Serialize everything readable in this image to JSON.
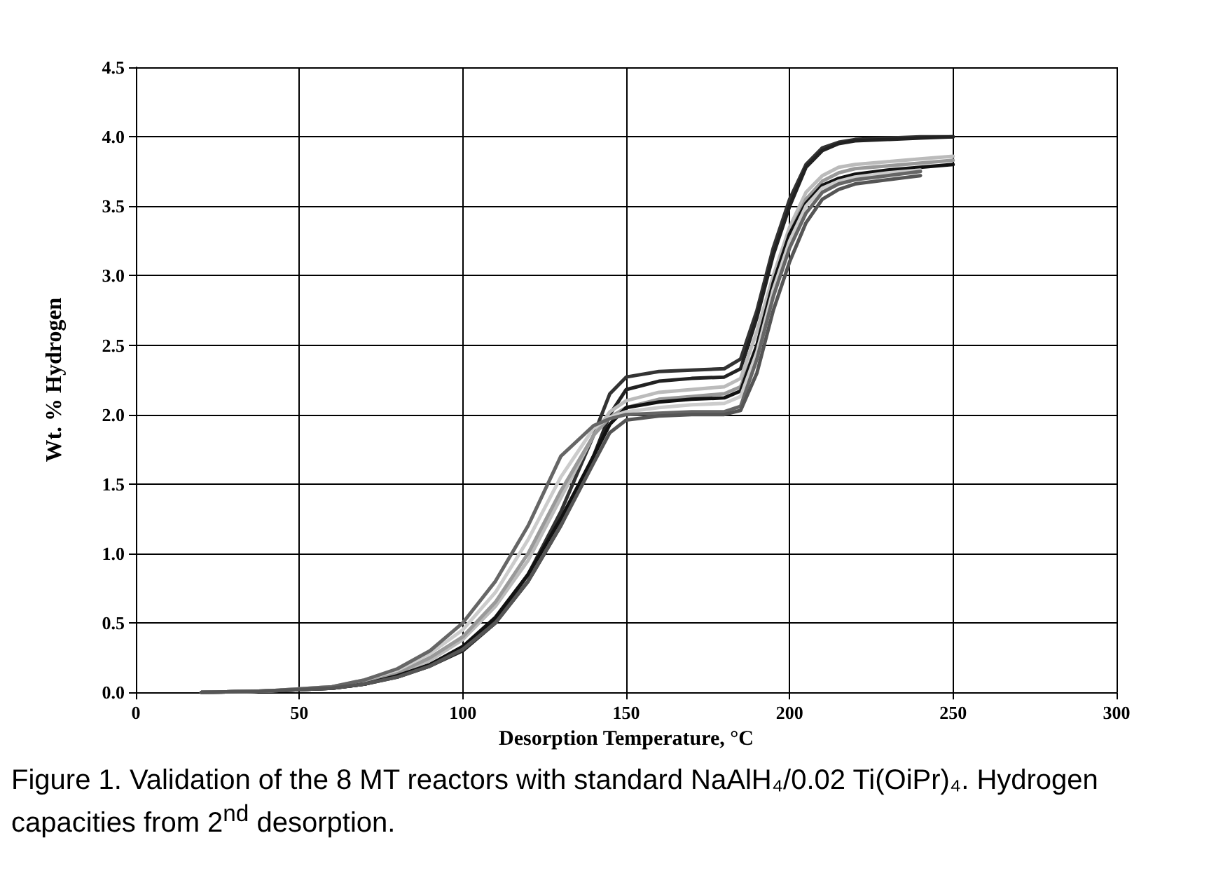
{
  "chart_data": {
    "type": "line",
    "xlabel": "Desorption Temperature, °C",
    "ylabel": "Wt. % Hydrogen",
    "annotations": [
      "Figure 1. Validation of the 8 MT reactors with standard NaAlH₄/0.02 Ti(OiPr)₄. Hydrogen capacities from 2$^{nd}$ desorption."
    ],
    "x": [
      20,
      40,
      60,
      70,
      80,
      90,
      100,
      110,
      120,
      130,
      140,
      145,
      150,
      160,
      170,
      180,
      185,
      190,
      195,
      200,
      205,
      210,
      215,
      220,
      230,
      240,
      250
    ],
    "xlim": [
      0,
      300
    ],
    "xticks": [
      0,
      50,
      100,
      150,
      200,
      250,
      300
    ],
    "ylim": [
      0,
      4.5
    ],
    "yticks": [
      {
        "value": 0,
        "label": "0.0"
      },
      {
        "value": 0.5,
        "label": "0.5"
      },
      {
        "value": 1,
        "label": "1.0"
      },
      {
        "value": 1.5,
        "label": "1.5"
      },
      {
        "value": 2,
        "label": "2.0"
      },
      {
        "value": 2.5,
        "label": "2.5"
      },
      {
        "value": 3,
        "label": "3.0"
      },
      {
        "value": 3.5,
        "label": "3.5"
      },
      {
        "value": 4,
        "label": "4.0"
      },
      {
        "value": 4.5,
        "label": "4.5"
      }
    ],
    "grid": true,
    "marker": "none",
    "line_style": "solid",
    "series": [
      {
        "color": "#333333",
        "values": [
          0,
          0.01,
          0.03,
          0.06,
          0.12,
          0.2,
          0.32,
          0.52,
          0.85,
          1.3,
          1.85,
          2.15,
          2.27,
          2.31,
          2.32,
          2.33,
          2.4,
          2.75,
          3.2,
          3.55,
          3.8,
          3.92,
          3.96,
          3.98,
          3.99,
          4.0,
          4.0
        ]
      },
      {
        "color": "#222222",
        "values": [
          0,
          0.01,
          0.03,
          0.06,
          0.11,
          0.19,
          0.3,
          0.5,
          0.8,
          1.2,
          1.7,
          2.0,
          2.18,
          2.24,
          2.26,
          2.27,
          2.33,
          2.7,
          3.15,
          3.5,
          3.78,
          3.9,
          3.95,
          3.97,
          3.98,
          3.99,
          4.0
        ]
      },
      {
        "color": "#bbbbbb",
        "values": [
          0,
          0.01,
          0.03,
          0.07,
          0.13,
          0.23,
          0.38,
          0.62,
          0.95,
          1.4,
          1.85,
          2.02,
          2.1,
          2.16,
          2.18,
          2.2,
          2.26,
          2.6,
          3.0,
          3.35,
          3.6,
          3.72,
          3.78,
          3.8,
          3.82,
          3.84,
          3.86
        ]
      },
      {
        "color": "#999999",
        "values": [
          0,
          0.01,
          0.04,
          0.08,
          0.14,
          0.25,
          0.4,
          0.65,
          1.0,
          1.45,
          1.85,
          1.98,
          2.05,
          2.11,
          2.13,
          2.15,
          2.2,
          2.5,
          2.95,
          3.3,
          3.55,
          3.68,
          3.74,
          3.77,
          3.79,
          3.81,
          3.83
        ]
      },
      {
        "color": "#111111",
        "values": [
          0,
          0.01,
          0.03,
          0.06,
          0.12,
          0.2,
          0.33,
          0.54,
          0.85,
          1.25,
          1.7,
          1.93,
          2.05,
          2.09,
          2.11,
          2.12,
          2.17,
          2.5,
          2.95,
          3.3,
          3.52,
          3.65,
          3.7,
          3.73,
          3.76,
          3.78,
          3.8
        ]
      },
      {
        "color": "#cccccc",
        "values": [
          0,
          0.01,
          0.04,
          0.09,
          0.16,
          0.28,
          0.45,
          0.72,
          1.1,
          1.55,
          1.9,
          1.98,
          2.02,
          2.05,
          2.07,
          2.08,
          2.13,
          2.45,
          2.9,
          3.25,
          3.5,
          3.63,
          3.68,
          3.71,
          3.74,
          3.76,
          null
        ]
      },
      {
        "color": "#666666",
        "values": [
          0,
          0.01,
          0.04,
          0.09,
          0.17,
          0.3,
          0.5,
          0.8,
          1.2,
          1.7,
          1.92,
          1.97,
          2.0,
          2.01,
          2.02,
          2.02,
          2.06,
          2.4,
          2.85,
          3.2,
          3.45,
          3.6,
          3.66,
          3.69,
          3.72,
          3.75,
          null
        ]
      },
      {
        "color": "#555555",
        "values": [
          0,
          0.01,
          0.03,
          0.06,
          0.11,
          0.19,
          0.31,
          0.5,
          0.8,
          1.2,
          1.65,
          1.87,
          1.96,
          1.99,
          2.0,
          2.0,
          2.03,
          2.3,
          2.75,
          3.1,
          3.38,
          3.55,
          3.62,
          3.66,
          3.69,
          3.72,
          null
        ]
      }
    ]
  }
}
